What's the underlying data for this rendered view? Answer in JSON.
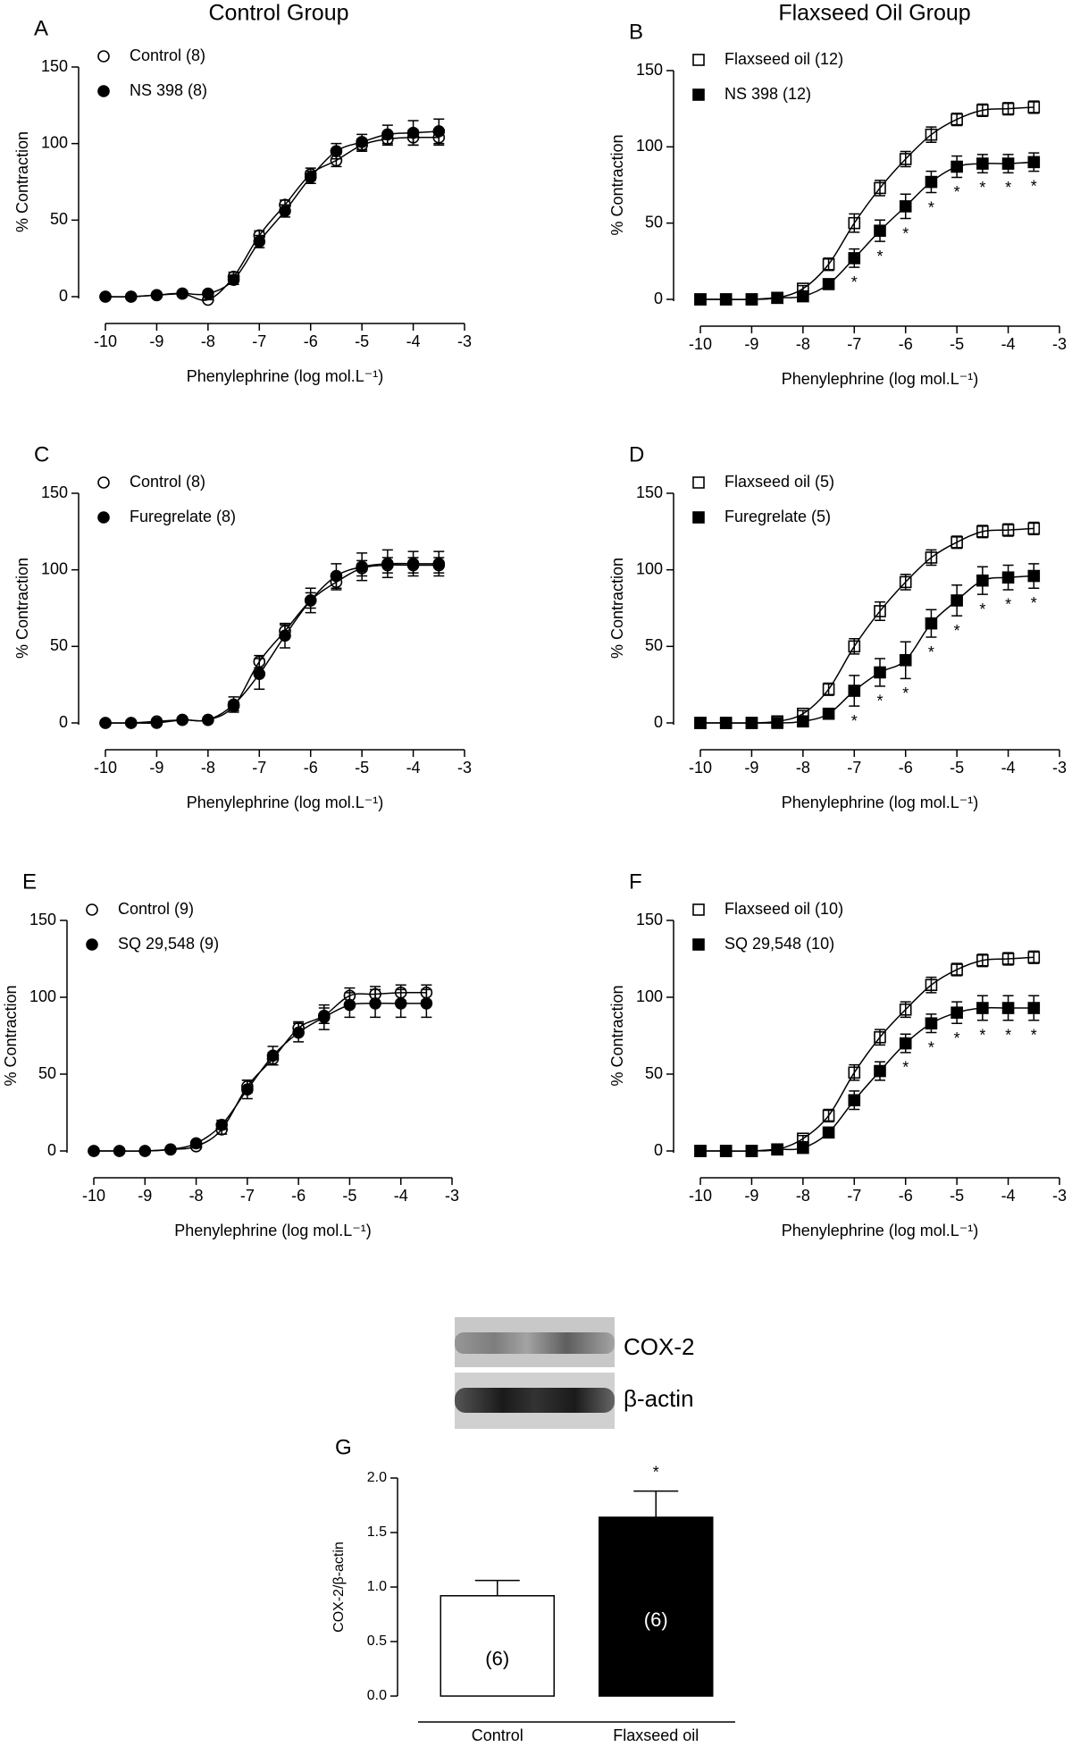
{
  "headings": [
    "Control Group",
    "Flaxseed Oil Group"
  ],
  "blot": {
    "labels": [
      "COX-2",
      "β-actin"
    ]
  },
  "chart_data": [
    {
      "type": "line",
      "label": "A",
      "ylabel": "% Contraction",
      "xlabel": "Phenylephrine (log mol.L⁻¹)",
      "x": [
        -10,
        -9.5,
        -9,
        -8.5,
        -8,
        -7.5,
        -7,
        -6.5,
        -6,
        -5.5,
        -5,
        -4.5,
        -4,
        -3.5
      ],
      "xlim": [
        -10,
        -3
      ],
      "xticks": [
        -10,
        -9,
        -8,
        -7,
        -6,
        -5,
        -4,
        -3
      ],
      "ylim": [
        0,
        150
      ],
      "yticks": [
        0,
        50,
        100,
        150
      ],
      "legend": "upper left",
      "series": [
        {
          "name": "Control (8)",
          "color": "#000000",
          "marker": "circle",
          "marker_fill": "none",
          "values": [
            0,
            0,
            1,
            2,
            -2,
            13,
            40,
            60,
            80,
            89,
            99,
            103,
            104,
            104
          ],
          "errors": [
            0,
            0,
            0,
            0,
            0,
            3,
            3,
            3,
            4,
            4,
            4,
            4,
            5,
            5
          ]
        },
        {
          "name": "NS 398 (8)",
          "color": "#000000",
          "marker": "circle",
          "marker_fill": "#000000",
          "values": [
            0,
            0,
            1,
            2,
            2,
            11,
            36,
            56,
            78,
            95,
            101,
            106,
            107,
            108
          ],
          "errors": [
            0,
            0,
            0,
            0,
            1,
            3,
            4,
            4,
            4,
            5,
            5,
            6,
            8,
            8
          ]
        }
      ]
    },
    {
      "type": "line",
      "label": "B",
      "ylabel": "% Contraction",
      "xlabel": "Phenylephrine (log mol.L⁻¹)",
      "x": [
        -10,
        -9.5,
        -9,
        -8.5,
        -8,
        -7.5,
        -7,
        -6.5,
        -6,
        -5.5,
        -5,
        -4.5,
        -4,
        -3.5
      ],
      "xlim": [
        -10,
        -3
      ],
      "xticks": [
        -10,
        -9,
        -8,
        -7,
        -6,
        -5,
        -4,
        -3
      ],
      "ylim": [
        0,
        150
      ],
      "yticks": [
        0,
        50,
        100,
        150
      ],
      "legend": "upper left",
      "series": [
        {
          "name": "Flaxseed oil (12)",
          "color": "#000000",
          "marker": "square",
          "marker_fill": "none",
          "values": [
            0,
            0,
            0,
            1,
            7,
            23,
            50,
            73,
            92,
            108,
            118,
            124,
            125,
            126
          ],
          "errors": [
            0,
            0,
            0,
            1,
            2,
            4,
            6,
            5,
            5,
            5,
            4,
            4,
            4,
            4
          ]
        },
        {
          "name": "NS 398 (12)",
          "color": "#000000",
          "marker": "square",
          "marker_fill": "#000000",
          "values": [
            0,
            0,
            0,
            1,
            2,
            10,
            27,
            45,
            61,
            77,
            87,
            89,
            89,
            90
          ],
          "errors": [
            0,
            0,
            0,
            1,
            1,
            3,
            6,
            7,
            8,
            7,
            7,
            6,
            6,
            6
          ],
          "significance": [
            null,
            null,
            null,
            null,
            null,
            null,
            "*",
            "*",
            "*",
            "*",
            "*",
            "*",
            "*",
            "*"
          ]
        }
      ]
    },
    {
      "type": "line",
      "label": "C",
      "ylabel": "% Contraction",
      "xlabel": "Phenylephrine (log mol.L⁻¹)",
      "x": [
        -10,
        -9.5,
        -9,
        -8.5,
        -8,
        -7.5,
        -7,
        -6.5,
        -6,
        -5.5,
        -5,
        -4.5,
        -4,
        -3.5
      ],
      "xlim": [
        -10,
        -3
      ],
      "xticks": [
        -10,
        -9,
        -8,
        -7,
        -6,
        -5,
        -4,
        -3
      ],
      "ylim": [
        0,
        150
      ],
      "yticks": [
        0,
        50,
        100,
        150
      ],
      "legend": "upper left",
      "series": [
        {
          "name": "Control (8)",
          "color": "#000000",
          "marker": "circle",
          "marker_fill": "none",
          "values": [
            0,
            0,
            1,
            2,
            2,
            11,
            40,
            60,
            80,
            92,
            101,
            103,
            103,
            103
          ],
          "errors": [
            0,
            0,
            0,
            0,
            0,
            3,
            4,
            4,
            5,
            5,
            5,
            5,
            5,
            5
          ]
        },
        {
          "name": "Furegrelate (8)",
          "color": "#000000",
          "marker": "circle",
          "marker_fill": "#000000",
          "values": [
            0,
            0,
            0,
            2,
            2,
            12,
            32,
            57,
            80,
            96,
            102,
            104,
            104,
            104
          ],
          "errors": [
            0,
            0,
            0,
            0,
            0,
            5,
            10,
            8,
            8,
            8,
            9,
            9,
            8,
            8
          ]
        }
      ]
    },
    {
      "type": "line",
      "label": "D",
      "ylabel": "% Contraction",
      "xlabel": "Phenylephrine (log mol.L⁻¹)",
      "x": [
        -10,
        -9.5,
        -9,
        -8.5,
        -8,
        -7.5,
        -7,
        -6.5,
        -6,
        -5.5,
        -5,
        -4.5,
        -4,
        -3.5
      ],
      "xlim": [
        -10,
        -3
      ],
      "xticks": [
        -10,
        -9,
        -8,
        -7,
        -6,
        -5,
        -4,
        -3
      ],
      "ylim": [
        0,
        150
      ],
      "yticks": [
        0,
        50,
        100,
        150
      ],
      "legend": "upper left",
      "series": [
        {
          "name": "Flaxseed oil (5)",
          "color": "#000000",
          "marker": "square",
          "marker_fill": "none",
          "values": [
            0,
            0,
            0,
            1,
            6,
            22,
            50,
            73,
            92,
            108,
            118,
            125,
            126,
            127
          ],
          "errors": [
            0,
            0,
            0,
            1,
            2,
            4,
            5,
            6,
            5,
            5,
            4,
            4,
            4,
            4
          ]
        },
        {
          "name": "Furegrelate (5)",
          "color": "#000000",
          "marker": "square",
          "marker_fill": "#000000",
          "values": [
            0,
            0,
            0,
            0,
            1,
            6,
            21,
            33,
            41,
            65,
            80,
            93,
            95,
            96
          ],
          "errors": [
            0,
            0,
            0,
            0,
            1,
            2,
            10,
            9,
            12,
            9,
            10,
            9,
            8,
            8
          ],
          "significance": [
            null,
            null,
            null,
            null,
            null,
            null,
            "*",
            "*",
            "*",
            "*",
            "*",
            "*",
            "*",
            "*"
          ]
        }
      ]
    },
    {
      "type": "line",
      "label": "E",
      "ylabel": "% Contraction",
      "xlabel": "Phenylephrine (log mol.L⁻¹)",
      "x": [
        -10,
        -9.5,
        -9,
        -8.5,
        -8,
        -7.5,
        -7,
        -6.5,
        -6,
        -5.5,
        -5,
        -4.5,
        -4,
        -3.5
      ],
      "xlim": [
        -10,
        -3
      ],
      "xticks": [
        -10,
        -9,
        -8,
        -7,
        -6,
        -5,
        -4,
        -3
      ],
      "ylim": [
        0,
        150
      ],
      "yticks": [
        0,
        50,
        100,
        150
      ],
      "legend": "upper left",
      "series": [
        {
          "name": "Control (9)",
          "color": "#000000",
          "marker": "circle",
          "marker_fill": "none",
          "values": [
            0,
            0,
            0,
            1,
            3,
            14,
            42,
            60,
            80,
            88,
            101,
            102,
            103,
            103
          ],
          "errors": [
            0,
            0,
            0,
            0,
            1,
            3,
            4,
            4,
            4,
            5,
            5,
            5,
            5,
            5
          ]
        },
        {
          "name": "SQ 29,548 (9)",
          "color": "#000000",
          "marker": "circle",
          "marker_fill": "#000000",
          "values": [
            0,
            0,
            0,
            1,
            5,
            17,
            40,
            62,
            77,
            87,
            95,
            96,
            96,
            96
          ],
          "errors": [
            0,
            0,
            0,
            0,
            1,
            3,
            6,
            6,
            6,
            8,
            8,
            9,
            9,
            9
          ]
        }
      ]
    },
    {
      "type": "line",
      "label": "F",
      "ylabel": "% Contraction",
      "xlabel": "Phenylephrine (log mol.L⁻¹)",
      "x": [
        -10,
        -9.5,
        -9,
        -8.5,
        -8,
        -7.5,
        -7,
        -6.5,
        -6,
        -5.5,
        -5,
        -4.5,
        -4,
        -3.5
      ],
      "xlim": [
        -10,
        -3
      ],
      "xticks": [
        -10,
        -9,
        -8,
        -7,
        -6,
        -5,
        -4,
        -3
      ],
      "ylim": [
        0,
        150
      ],
      "yticks": [
        0,
        50,
        100,
        150
      ],
      "legend": "upper left",
      "series": [
        {
          "name": "Flaxseed oil (10)",
          "color": "#000000",
          "marker": "square",
          "marker_fill": "none",
          "values": [
            0,
            0,
            0,
            1,
            8,
            23,
            51,
            74,
            92,
            108,
            118,
            124,
            125,
            126
          ],
          "errors": [
            0,
            0,
            0,
            1,
            2,
            4,
            5,
            5,
            5,
            5,
            4,
            4,
            4,
            4
          ]
        },
        {
          "name": "SQ 29,548 (10)",
          "color": "#000000",
          "marker": "square",
          "marker_fill": "#000000",
          "values": [
            0,
            0,
            0,
            1,
            2,
            12,
            33,
            52,
            70,
            83,
            90,
            93,
            93,
            93
          ],
          "errors": [
            0,
            0,
            0,
            1,
            1,
            3,
            6,
            6,
            6,
            6,
            7,
            8,
            8,
            8
          ],
          "significance": [
            null,
            null,
            null,
            null,
            null,
            null,
            null,
            null,
            "*",
            "*",
            "*",
            "*",
            "*",
            "*"
          ]
        }
      ]
    },
    {
      "type": "bar",
      "label": "G",
      "ylabel": "COX-2/β-actin",
      "categories": [
        "Control",
        "Flaxseed oil"
      ],
      "values": [
        0.92,
        1.64
      ],
      "errors": [
        0.14,
        0.24
      ],
      "colors": [
        "#ffffff",
        "#000000"
      ],
      "n_labels": [
        "(6)",
        "(6)"
      ],
      "significance": [
        null,
        "*"
      ],
      "ylim": [
        0,
        2
      ],
      "yticks": [
        {
          "value": 0,
          "label": "0.0"
        },
        0.5,
        {
          "value": 1,
          "label": "1.0"
        },
        1.5,
        {
          "value": 2,
          "label": "2.0"
        }
      ]
    }
  ]
}
